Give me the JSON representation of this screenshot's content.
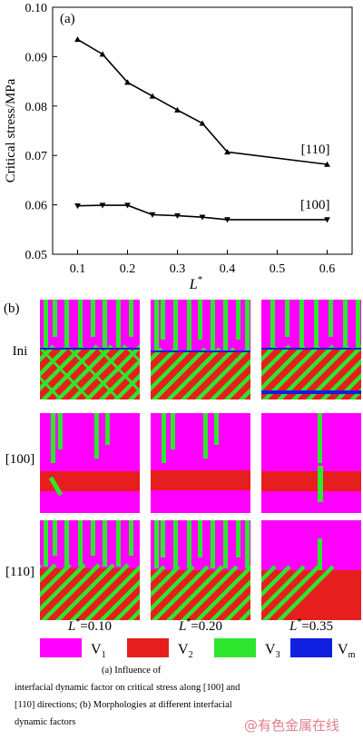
{
  "chart_data": {
    "type": "line",
    "panel_label": "(a)",
    "xlabel": "L",
    "xlabel_sup": "*",
    "ylabel": "Critical stress/MPa",
    "xlim": [
      0.05,
      0.65
    ],
    "ylim": [
      0.05,
      0.1
    ],
    "xticks": [
      "0.1",
      "0.2",
      "0.3",
      "0.4",
      "0.5",
      "0.6"
    ],
    "yticks": [
      "0.05",
      "0.06",
      "0.07",
      "0.08",
      "0.09",
      "0.10"
    ],
    "grid": false,
    "series": [
      {
        "name": "[110]",
        "marker": "triangle-up",
        "x": [
          0.1,
          0.15,
          0.2,
          0.25,
          0.3,
          0.35,
          0.4,
          0.6
        ],
        "y": [
          0.0935,
          0.0905,
          0.0848,
          0.082,
          0.0792,
          0.0765,
          0.0707,
          0.0682
        ]
      },
      {
        "name": "[100]",
        "marker": "triangle-down",
        "x": [
          0.1,
          0.15,
          0.2,
          0.25,
          0.3,
          0.35,
          0.4,
          0.6
        ],
        "y": [
          0.0598,
          0.0599,
          0.0599,
          0.058,
          0.0578,
          0.0575,
          0.057,
          0.057
        ]
      }
    ]
  },
  "panel_b": {
    "label": "(b)",
    "rows": [
      "Ini",
      "[100]",
      "[110]"
    ],
    "columns": [
      {
        "prefix": "L",
        "sup": "*",
        "value": "=0.10"
      },
      {
        "prefix": "L",
        "sup": "*",
        "value": "=0.20"
      },
      {
        "prefix": "L",
        "sup": "*",
        "value": "=0.35"
      }
    ],
    "legend": [
      {
        "label": "V",
        "sub": "1",
        "color": "#ff00ff"
      },
      {
        "label": "V",
        "sub": "2",
        "color": "#e61e1e"
      },
      {
        "label": "V",
        "sub": "3",
        "color": "#2ee62e"
      },
      {
        "label": "V",
        "sub": "m",
        "color": "#1020e0"
      }
    ]
  },
  "caption": {
    "line1": "(a)  Influence of",
    "line2": "interfacial dynamic factor on critical stress along [100] and",
    "line3": "[110] directions; (b) Morphologies at different interfacial",
    "line4": "dynamic factors"
  },
  "watermark": "@有色金属在线"
}
